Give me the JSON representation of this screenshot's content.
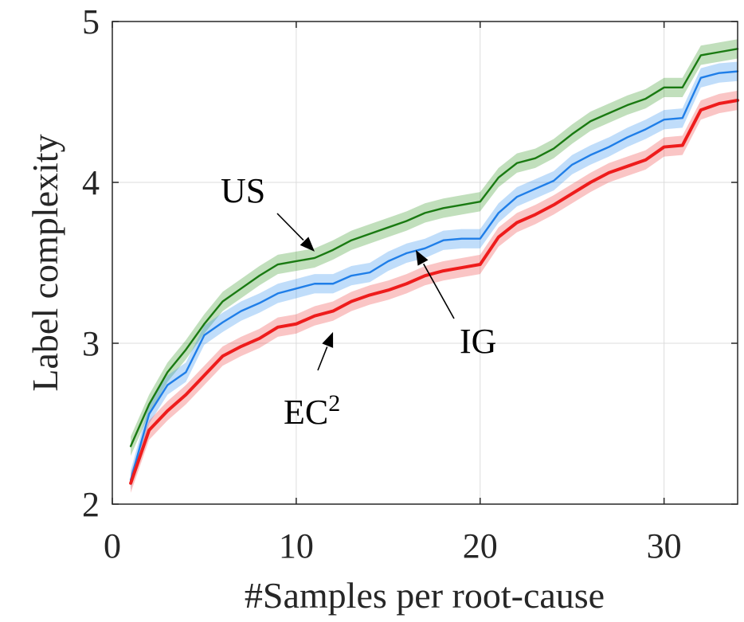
{
  "chart_data": {
    "type": "line",
    "title": "",
    "xlabel": "#Samples per root-cause",
    "ylabel": "Label complexity",
    "xlim": [
      0,
      34
    ],
    "ylim": [
      2,
      5
    ],
    "xticks": [
      0,
      10,
      20,
      30
    ],
    "yticks": [
      2,
      3,
      4,
      5
    ],
    "xtick_labels": [
      "0",
      "10",
      "20",
      "30"
    ],
    "ytick_labels": [
      "2",
      "3",
      "4",
      "5"
    ],
    "grid": true,
    "x": [
      1,
      2,
      3,
      4,
      5,
      6,
      7,
      8,
      9,
      10,
      11,
      12,
      13,
      14,
      15,
      16,
      17,
      18,
      19,
      20,
      21,
      22,
      23,
      24,
      25,
      26,
      27,
      28,
      29,
      30,
      31,
      32,
      33,
      34
    ],
    "series": [
      {
        "name": "US",
        "color": "#1a7a12",
        "band_color": "#3d9a30",
        "band_halfwidth": 0.06,
        "values": [
          2.36,
          2.62,
          2.82,
          2.96,
          3.12,
          3.26,
          3.34,
          3.42,
          3.49,
          3.51,
          3.53,
          3.58,
          3.64,
          3.68,
          3.72,
          3.76,
          3.81,
          3.84,
          3.86,
          3.88,
          4.03,
          4.12,
          4.15,
          4.21,
          4.3,
          4.38,
          4.43,
          4.48,
          4.52,
          4.59,
          4.59,
          4.79,
          4.81,
          4.83
        ]
      },
      {
        "name": "IG",
        "color": "#1f7ee8",
        "band_color": "#3b96f0",
        "band_halfwidth": 0.06,
        "values": [
          2.15,
          2.56,
          2.74,
          2.82,
          3.05,
          3.13,
          3.2,
          3.25,
          3.31,
          3.34,
          3.37,
          3.37,
          3.42,
          3.44,
          3.51,
          3.56,
          3.59,
          3.64,
          3.65,
          3.65,
          3.81,
          3.91,
          3.96,
          4.01,
          4.11,
          4.17,
          4.22,
          4.28,
          4.33,
          4.39,
          4.4,
          4.65,
          4.68,
          4.69
        ]
      },
      {
        "name": "EC^2",
        "color": "#ee1c1c",
        "band_color": "#f04b4b",
        "band_halfwidth": 0.06,
        "values": [
          2.13,
          2.46,
          2.58,
          2.68,
          2.8,
          2.92,
          2.98,
          3.03,
          3.1,
          3.12,
          3.17,
          3.2,
          3.26,
          3.3,
          3.33,
          3.37,
          3.42,
          3.45,
          3.47,
          3.49,
          3.66,
          3.75,
          3.8,
          3.86,
          3.93,
          4.0,
          4.06,
          4.1,
          4.14,
          4.22,
          4.23,
          4.45,
          4.49,
          4.51
        ]
      }
    ],
    "annotations": [
      {
        "label": "US",
        "target": [
          11,
          3.57
        ]
      },
      {
        "label": "IG",
        "target": [
          16.5,
          3.58
        ]
      },
      {
        "label": "EC",
        "superscript": "2",
        "target": [
          12,
          3.07
        ]
      }
    ]
  }
}
